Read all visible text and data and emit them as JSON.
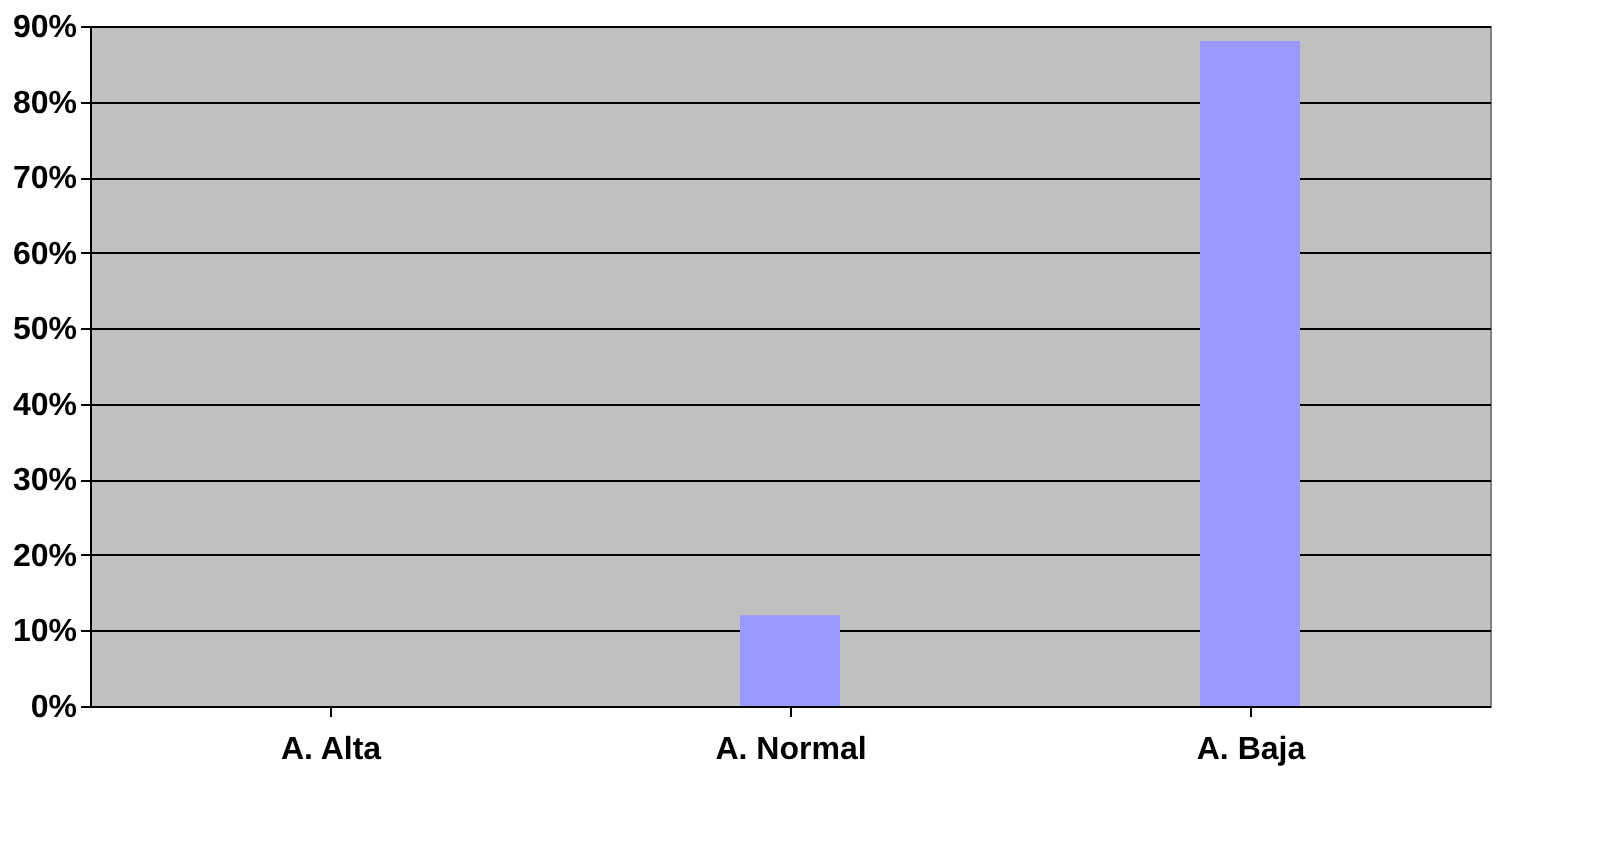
{
  "chart_data": {
    "type": "bar",
    "categories": [
      "A. Alta",
      "A. Normal",
      "A. Baja"
    ],
    "values": [
      0,
      12,
      88
    ],
    "color": "#9999ff",
    "ylim": [
      0,
      90
    ],
    "yticks": [
      {
        "value": 0,
        "label": "0%"
      },
      {
        "value": 10,
        "label": "10%"
      },
      {
        "value": 20,
        "label": "20%"
      },
      {
        "value": 30,
        "label": "30%"
      },
      {
        "value": 40,
        "label": "40%"
      },
      {
        "value": 50,
        "label": "50%"
      },
      {
        "value": 60,
        "label": "60%"
      },
      {
        "value": 70,
        "label": "70%"
      },
      {
        "value": 80,
        "label": "80%"
      },
      {
        "value": 90,
        "label": "90%"
      }
    ],
    "grid": "y"
  }
}
